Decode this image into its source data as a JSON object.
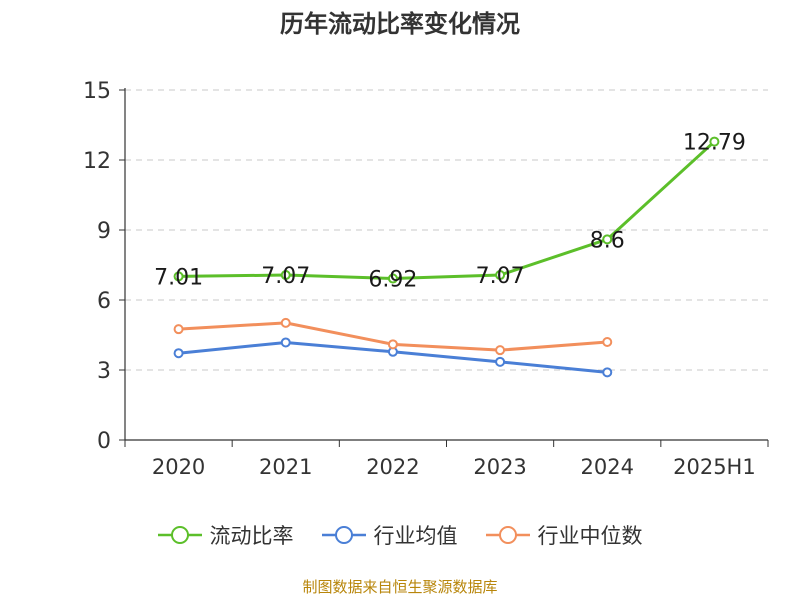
{
  "chart_data": {
    "type": "line",
    "title": "历年流动比率变化情况",
    "categories": [
      "2020",
      "2021",
      "2022",
      "2023",
      "2024",
      "2025H1"
    ],
    "yticks": [
      0,
      3,
      6,
      9,
      12,
      15
    ],
    "ylim": [
      0,
      15
    ],
    "grid": true,
    "legend_position": "bottom",
    "series": [
      {
        "name": "流动比率",
        "color": "#5cbf2a",
        "values": [
          7.01,
          7.07,
          6.92,
          7.07,
          8.6,
          12.79
        ],
        "labels": [
          "7.01",
          "7.07",
          "6.92",
          "7.07",
          "8.6",
          "12.79"
        ]
      },
      {
        "name": "行业均值",
        "color": "#4a7fd6",
        "values": [
          3.72,
          4.18,
          3.78,
          3.35,
          2.9,
          null
        ]
      },
      {
        "name": "行业中位数",
        "color": "#f28f5c",
        "values": [
          4.75,
          5.02,
          4.1,
          3.85,
          4.2,
          null
        ]
      }
    ]
  },
  "source_text": "制图数据来自恒生聚源数据库"
}
